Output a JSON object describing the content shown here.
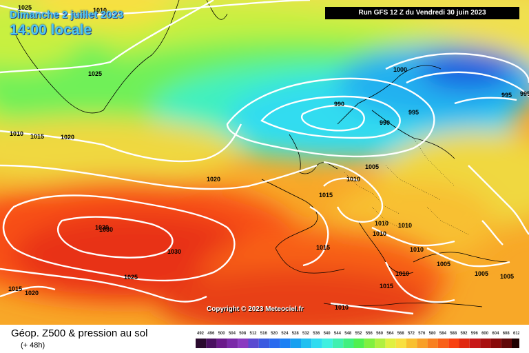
{
  "header": {
    "date": "Dimanche 2 juillet 2023",
    "time": "14:00 locale",
    "run": "Run GFS 12 Z du Vendredi 30 juin 2023"
  },
  "copyright": "Copyright © 2023 Meteociel.fr",
  "footer": {
    "title": "Géop. Z500 & pression au sol",
    "subtitle": "(+ 48h)"
  },
  "scale": {
    "labels": [
      "492",
      "496",
      "500",
      "504",
      "508",
      "512",
      "516",
      "520",
      "524",
      "528",
      "532",
      "536",
      "540",
      "544",
      "548",
      "552",
      "556",
      "560",
      "564",
      "568",
      "572",
      "576",
      "580",
      "584",
      "588",
      "592",
      "596",
      "600",
      "604",
      "608",
      "612"
    ],
    "colors": [
      "#2a0a2e",
      "#4a1060",
      "#6a1a8a",
      "#7a2aa8",
      "#8a3ac0",
      "#5a4ad0",
      "#3a5ae0",
      "#2a6aee",
      "#1a80f4",
      "#18a0f0",
      "#20c0f0",
      "#30dcf0",
      "#40f0e0",
      "#40f0b0",
      "#40f080",
      "#50f050",
      "#80f040",
      "#b0f040",
      "#e0f040",
      "#f8e040",
      "#f8c030",
      "#f8a028",
      "#f88020",
      "#f86018",
      "#f84010",
      "#e02810",
      "#c81818",
      "#a81010",
      "#880a0a",
      "#600808",
      "#200000"
    ]
  },
  "isobars": [
    "1025",
    "1010",
    "1025",
    "1010",
    "1015",
    "1020",
    "1020",
    "1000",
    "990",
    "990",
    "995",
    "995",
    "995",
    "1005",
    "1010",
    "1015",
    "1030",
    "1030",
    "1030",
    "1010",
    "1010",
    "1010",
    "1015",
    "1010",
    "1005",
    "1005",
    "1005",
    "1025",
    "1015",
    "1020",
    "1015",
    "1010",
    "1010"
  ]
}
